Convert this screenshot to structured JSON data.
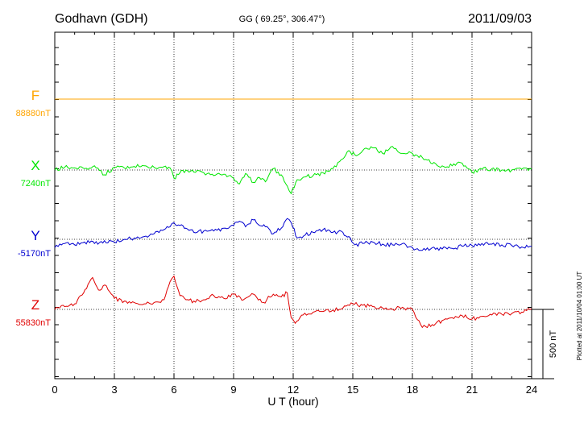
{
  "header": {
    "station": "Godhavn (GDH)",
    "coords": "GG ( 69.25°, 306.47°)",
    "date": "2011/09/03"
  },
  "footer": {
    "plotted_at": "Plotted at 2011/10/04 01:00 UT"
  },
  "scale_bar_label": "500 nT",
  "colors": {
    "F": "#FFA500",
    "X": "#00E600",
    "Y": "#0000D0",
    "Z": "#E00000",
    "frame": "#000000",
    "grid": "#000000"
  },
  "chart_data": {
    "type": "line",
    "title": "Godhavn (GDH)",
    "subtitle": "GG ( 69.25°, 306.47°)",
    "xlabel": "U T (hour)",
    "ylabel": "",
    "xlim": [
      0,
      24
    ],
    "x_ticks": [
      0,
      3,
      6,
      9,
      12,
      15,
      18,
      21,
      24
    ],
    "x_tick_labels": [
      "0",
      "3",
      "6",
      "9",
      "12",
      "15",
      "18",
      "21",
      "24"
    ],
    "grid": true,
    "scale_bar_nT": 500,
    "series": [
      {
        "name": "F",
        "baseline_label": "88880nT",
        "baseline_nT": 88880,
        "x": [
          0,
          24
        ],
        "y": [
          0,
          0
        ]
      },
      {
        "name": "X",
        "baseline_label": "7240nT",
        "baseline_nT": 7240,
        "x": [
          0,
          0.5,
          1.0,
          1.5,
          2.0,
          2.5,
          3.0,
          3.5,
          4.0,
          4.5,
          5.0,
          5.5,
          5.8,
          6.0,
          6.3,
          6.6,
          7.0,
          7.5,
          8.0,
          8.5,
          9.0,
          9.3,
          9.6,
          10.0,
          10.3,
          10.6,
          11.0,
          11.4,
          11.7,
          11.9,
          12.2,
          12.6,
          13.0,
          13.5,
          14.0,
          14.5,
          14.8,
          15.1,
          15.5,
          16.0,
          16.5,
          17.0,
          17.5,
          18.0,
          18.5,
          19.0,
          19.5,
          20.0,
          20.5,
          21.0,
          21.5,
          22.0,
          22.5,
          23.0,
          23.5,
          24.0
        ],
        "y": [
          0,
          20,
          15,
          10,
          30,
          -35,
          20,
          15,
          25,
          30,
          20,
          25,
          15,
          -60,
          -20,
          0,
          -15,
          -20,
          -40,
          -30,
          -60,
          -100,
          -25,
          -90,
          -55,
          -85,
          10,
          -35,
          -115,
          -170,
          -70,
          -50,
          -40,
          -20,
          10,
          80,
          140,
          110,
          140,
          160,
          120,
          170,
          120,
          120,
          90,
          45,
          30,
          30,
          50,
          -15,
          5,
          10,
          0,
          0,
          5,
          5
        ]
      },
      {
        "name": "Y",
        "baseline_label": "-5170nT",
        "baseline_nT": -5170,
        "x": [
          0,
          0.5,
          1.0,
          1.5,
          2.0,
          2.5,
          3.0,
          3.5,
          4.0,
          4.5,
          5.0,
          5.5,
          5.8,
          6.0,
          6.3,
          6.6,
          7.0,
          7.5,
          8.0,
          8.5,
          9.0,
          9.3,
          9.6,
          10.0,
          10.3,
          10.6,
          11.0,
          11.4,
          11.7,
          11.9,
          12.2,
          12.6,
          13.0,
          13.5,
          14.0,
          14.5,
          14.8,
          15.1,
          15.5,
          16.0,
          16.5,
          17.0,
          17.5,
          18.0,
          18.5,
          19.0,
          19.5,
          20.0,
          20.5,
          21.0,
          21.5,
          22.0,
          22.5,
          23.0,
          23.5,
          24.0
        ],
        "y": [
          -60,
          -30,
          -40,
          -20,
          -30,
          -10,
          -20,
          0,
          10,
          20,
          40,
          70,
          90,
          120,
          100,
          80,
          50,
          60,
          60,
          80,
          100,
          130,
          90,
          140,
          100,
          90,
          40,
          80,
          150,
          120,
          10,
          30,
          50,
          70,
          50,
          50,
          20,
          -40,
          -30,
          -20,
          -35,
          -40,
          -30,
          -60,
          -80,
          -60,
          -70,
          -65,
          -50,
          -45,
          -30,
          -35,
          -40,
          -45,
          -55,
          -50
        ]
      },
      {
        "name": "Z",
        "baseline_label": "55830nT",
        "baseline_nT": 55830,
        "x": [
          0,
          0.5,
          1.0,
          1.3,
          1.6,
          1.9,
          2.2,
          2.6,
          3.0,
          3.5,
          4.0,
          4.5,
          5.0,
          5.5,
          5.8,
          6.0,
          6.3,
          6.6,
          7.0,
          7.5,
          8.0,
          8.5,
          9.0,
          9.5,
          10.0,
          10.5,
          11.0,
          11.4,
          11.7,
          11.9,
          12.1,
          12.5,
          13.0,
          13.5,
          14.0,
          14.5,
          15.0,
          15.5,
          16.0,
          16.5,
          17.0,
          17.5,
          18.0,
          18.5,
          19.0,
          19.5,
          20.0,
          20.5,
          21.0,
          21.5,
          22.0,
          22.5,
          23.0,
          23.5,
          24.0
        ],
        "y": [
          0,
          20,
          40,
          100,
          150,
          230,
          140,
          170,
          80,
          60,
          50,
          40,
          50,
          70,
          200,
          240,
          100,
          70,
          60,
          70,
          100,
          80,
          110,
          70,
          110,
          50,
          110,
          90,
          120,
          -60,
          -100,
          -40,
          -20,
          -15,
          -5,
          10,
          40,
          30,
          20,
          10,
          0,
          15,
          0,
          -130,
          -110,
          -80,
          -60,
          -45,
          -70,
          -50,
          -40,
          -35,
          -30,
          -20,
          5
        ]
      }
    ]
  }
}
